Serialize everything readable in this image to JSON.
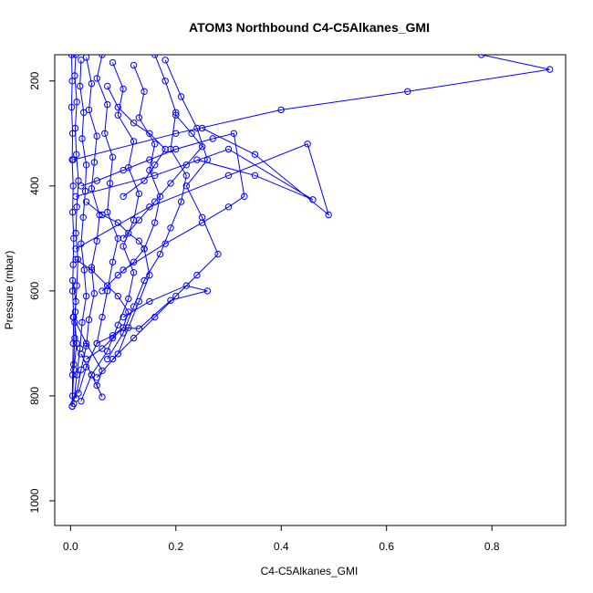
{
  "chart_data": {
    "type": "line",
    "title": "ATOM3 Northbound C4-C5Alkanes_GMI",
    "xlabel": "C4-C5Alkanes_GMI",
    "ylabel": "Pressure (mbar)",
    "xlim": [
      -0.03,
      0.94
    ],
    "ylim": [
      1047,
      150
    ],
    "y_reversed": true,
    "grid": false,
    "color": "#0000ff",
    "x_ticks": [
      0,
      0.2,
      0.4,
      0.6,
      0.8
    ],
    "x_tick_labels": [
      "0.0",
      "0.2",
      "0.4",
      "0.6",
      "0.8"
    ],
    "y_ticks": [
      200,
      400,
      600,
      800,
      1000
    ],
    "y_tick_labels": [
      "200",
      "400",
      "600",
      "800",
      "1000"
    ],
    "series": [
      {
        "x": [
          0.002,
          0.003,
          0.002,
          0.004,
          0.003,
          0.005,
          0.004,
          0.006,
          0.005,
          0.004,
          0.006,
          0.005,
          0.004,
          0.003
        ],
        "y": [
          150,
          200,
          250,
          300,
          350,
          400,
          450,
          500,
          550,
          600,
          650,
          700,
          760,
          820
        ]
      },
      {
        "x": [
          0.01,
          0.008,
          0.012,
          0.009,
          0.011,
          0.015,
          0.012,
          0.01,
          0.014,
          0.012,
          0.009,
          0.008,
          0.006,
          0.004
        ],
        "y": [
          150,
          190,
          240,
          290,
          340,
          390,
          440,
          490,
          540,
          590,
          640,
          690,
          740,
          800
        ]
      },
      {
        "x": [
          0.02,
          0.018,
          0.025,
          0.022,
          0.03,
          0.028,
          0.024,
          0.02,
          0.026,
          0.03,
          0.022,
          0.018,
          0.012,
          0.006
        ],
        "y": [
          160,
          210,
          260,
          310,
          360,
          410,
          460,
          510,
          560,
          610,
          660,
          710,
          760,
          815
        ]
      },
      {
        "x": [
          0.03,
          0.04,
          0.035,
          0.05,
          0.045,
          0.04,
          0.055,
          0.05,
          0.04,
          0.045,
          0.035,
          0.03,
          0.02,
          0.01
        ],
        "y": [
          155,
          205,
          255,
          305,
          355,
          405,
          455,
          505,
          555,
          605,
          655,
          705,
          750,
          805
        ]
      },
      {
        "x": [
          0.06,
          0.05,
          0.07,
          0.065,
          0.08,
          0.075,
          0.07,
          0.09,
          0.08,
          0.07,
          0.06,
          0.05,
          0.03,
          0.015
        ],
        "y": [
          150,
          195,
          245,
          300,
          345,
          395,
          450,
          500,
          545,
          600,
          650,
          700,
          745,
          795
        ]
      },
      {
        "x": [
          0.08,
          0.1,
          0.09,
          0.12,
          0.11,
          0.13,
          0.12,
          0.1,
          0.12,
          0.11,
          0.09,
          0.07,
          0.04,
          0.02
        ],
        "y": [
          165,
          215,
          265,
          315,
          365,
          415,
          465,
          515,
          565,
          615,
          665,
          715,
          760,
          810
        ]
      },
      {
        "x": [
          0.12,
          0.14,
          0.13,
          0.16,
          0.15,
          0.17,
          0.16,
          0.14,
          0.15,
          0.13,
          0.11,
          0.09,
          0.05
        ],
        "y": [
          170,
          220,
          270,
          320,
          370,
          420,
          470,
          520,
          570,
          620,
          670,
          720,
          765
        ]
      },
      {
        "x": [
          0.16,
          0.18,
          0.2,
          0.19,
          0.22,
          0.21,
          0.19,
          0.17,
          0.14,
          0.12,
          0.1,
          0.07
        ],
        "y": [
          150,
          200,
          260,
          330,
          380,
          430,
          480,
          530,
          580,
          630,
          680,
          730
        ]
      },
      {
        "x": [
          0.18,
          0.21,
          0.24,
          0.26,
          0.22,
          0.25,
          0.28,
          0.24,
          0.2,
          0.16,
          0.12,
          0.08
        ],
        "y": [
          160,
          230,
          290,
          350,
          400,
          460,
          530,
          570,
          610,
          650,
          690,
          730
        ]
      },
      {
        "x": [
          0.02,
          0.05,
          0.1,
          0.15,
          0.2,
          0.27,
          0.31,
          0.33,
          0.3,
          0.25,
          0.18,
          0.1
        ],
        "y": [
          400,
          390,
          370,
          350,
          330,
          310,
          300,
          420,
          440,
          470,
          510,
          560
        ]
      },
      {
        "x": [
          0.01,
          0.15,
          0.3,
          0.45,
          0.49,
          0.35,
          0.25
        ],
        "y": [
          520,
          440,
          380,
          320,
          455,
          340,
          290
        ]
      },
      {
        "x": [
          0.005,
          0.2,
          0.4,
          0.64,
          0.91,
          0.78
        ],
        "y": [
          350,
          300,
          255,
          220,
          178,
          150
        ]
      },
      {
        "x": [
          0.01,
          0.16,
          0.3,
          0.46,
          0.35,
          0.24
        ],
        "y": [
          420,
          380,
          330,
          426,
          380,
          350
        ]
      },
      {
        "x": [
          0.005,
          0.03,
          0.06,
          0.05,
          0.06,
          0.04,
          0.02
        ],
        "y": [
          650,
          700,
          752,
          780,
          802,
          760,
          720
        ]
      },
      {
        "x": [
          0.05,
          0.08,
          0.1,
          0.13,
          0.19,
          0.26,
          0.22,
          0.15,
          0.1
        ],
        "y": [
          700,
          685,
          670,
          672,
          618,
          600,
          590,
          620,
          650
        ]
      },
      {
        "x": [
          0.01,
          0.04,
          0.07,
          0.09,
          0.11,
          0.1,
          0.08,
          0.06,
          0.03
        ],
        "y": [
          540,
          560,
          590,
          610,
          640,
          670,
          690,
          710,
          730
        ]
      },
      {
        "x": [
          0.004,
          0.01,
          0.008,
          0.012,
          0.006,
          0.003
        ],
        "y": [
          580,
          620,
          660,
          700,
          750,
          820
        ]
      },
      {
        "x": [
          0.07,
          0.09,
          0.12,
          0.15,
          0.18,
          0.16,
          0.14,
          0.1
        ],
        "y": [
          210,
          250,
          280,
          300,
          330,
          360,
          390,
          420
        ]
      },
      {
        "x": [
          0.03,
          0.06,
          0.09,
          0.11,
          0.13,
          0.14,
          0.12,
          0.09,
          0.06
        ],
        "y": [
          430,
          455,
          470,
          490,
          505,
          520,
          545,
          570,
          600
        ]
      },
      {
        "x": [
          0.2,
          0.23,
          0.25,
          0.22,
          0.19,
          0.16,
          0.13,
          0.1
        ],
        "y": [
          265,
          300,
          325,
          360,
          395,
          430,
          465,
          500
        ]
      }
    ]
  }
}
